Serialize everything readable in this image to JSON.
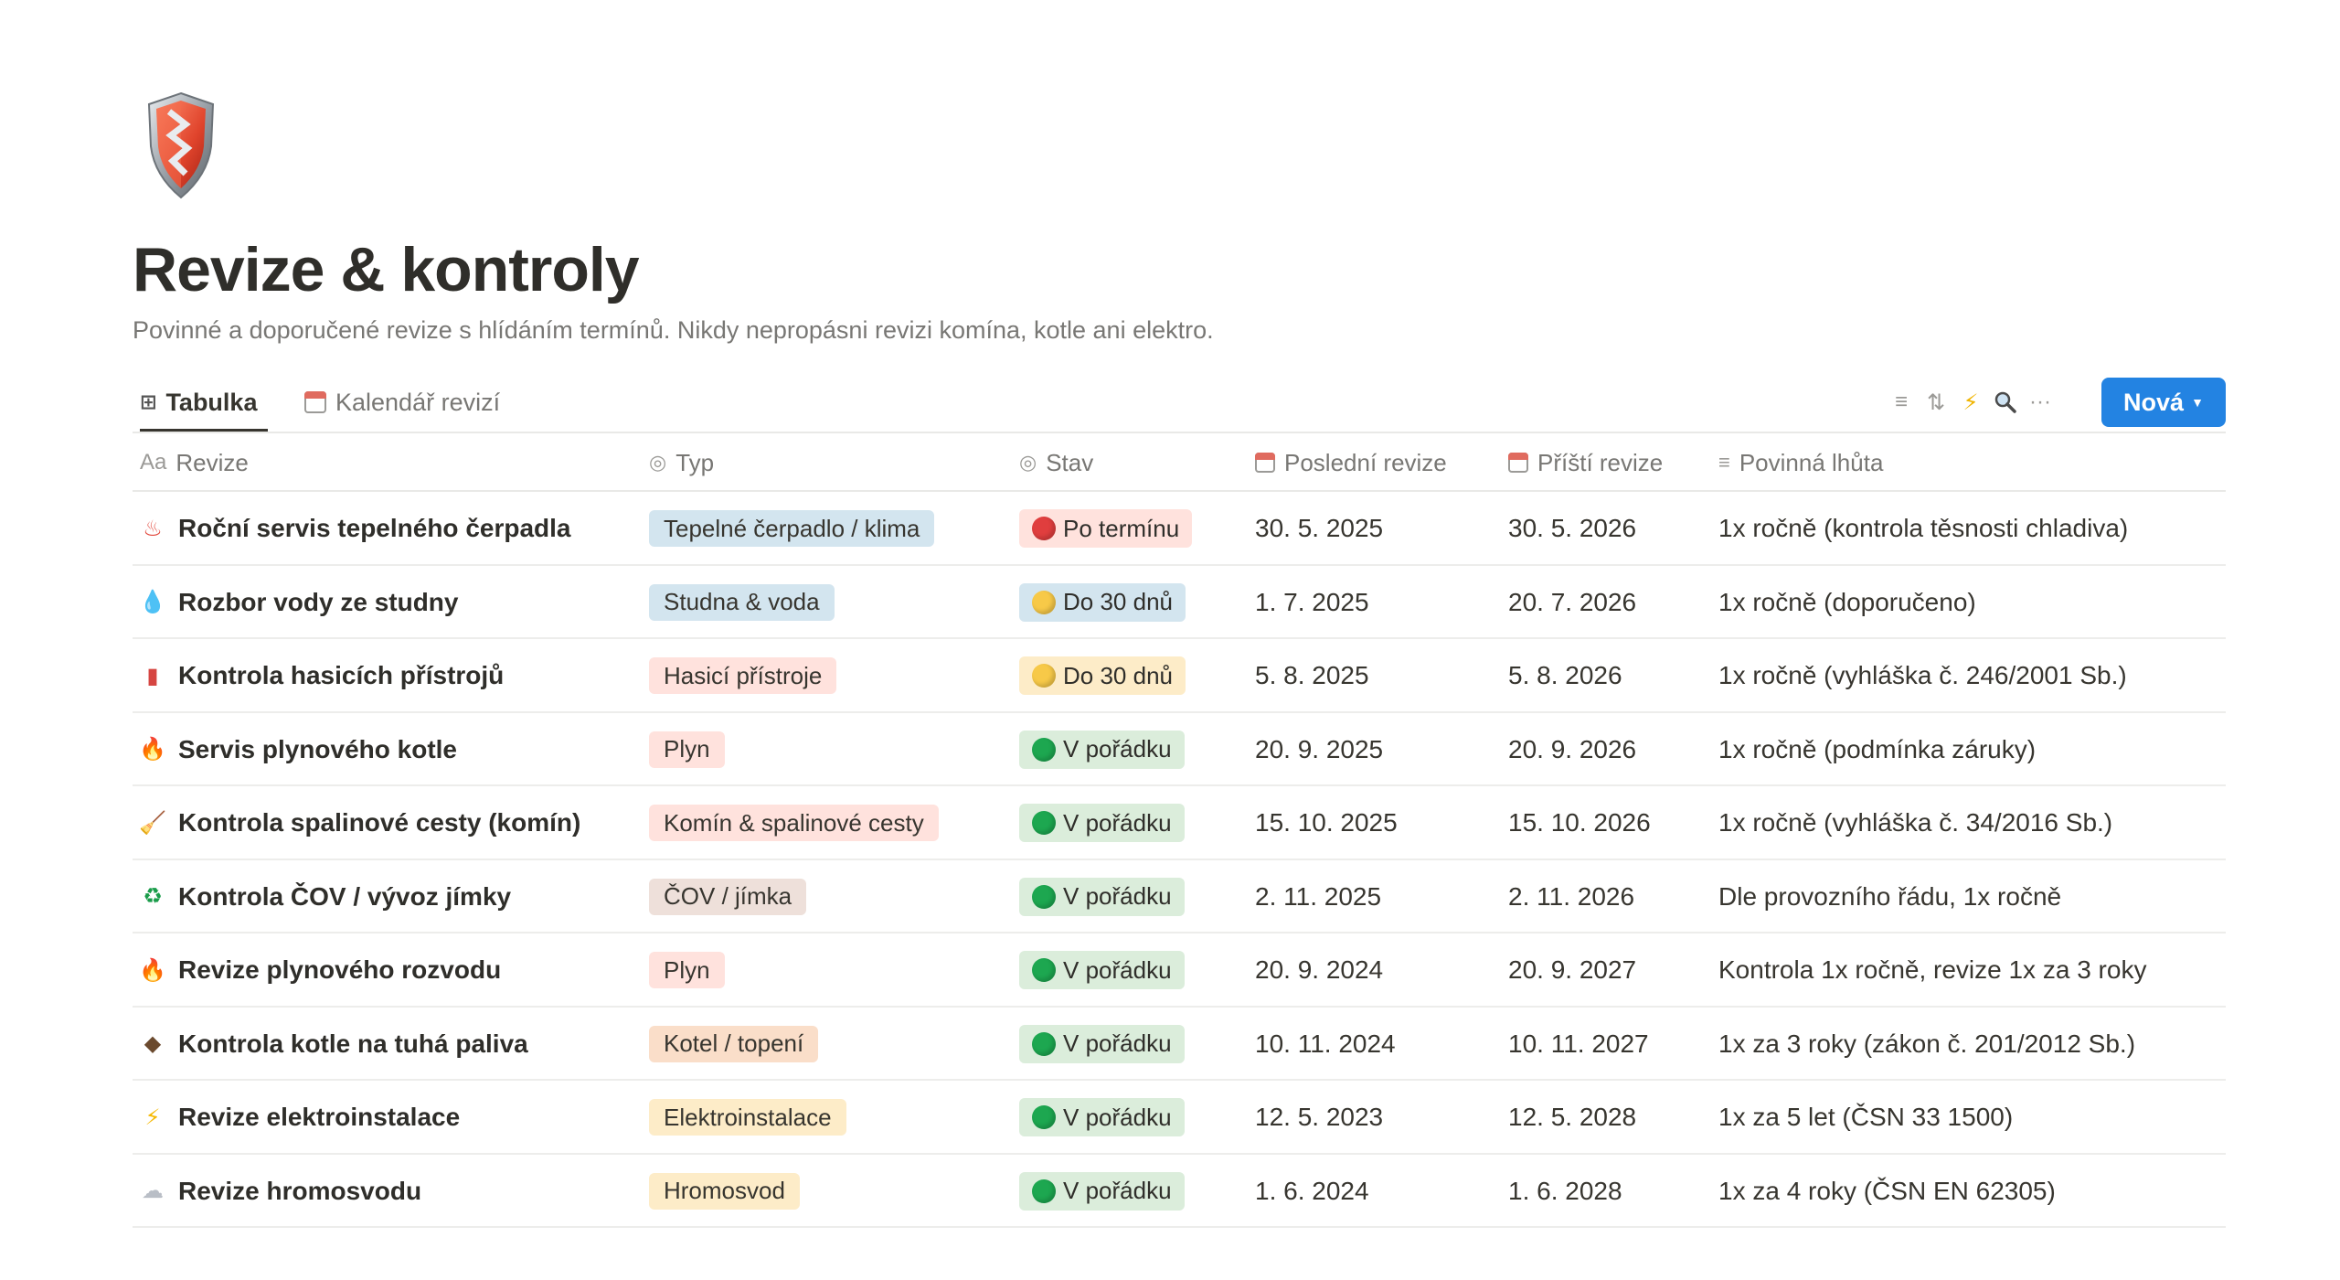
{
  "page": {
    "title": "Revize & kontroly",
    "subtitle": "Povinné a doporučené revize s hlídáním termínů. Nikdy nepropásni revizi komína, kotle ani elektro.",
    "icon": "shield-icon"
  },
  "tabs": [
    {
      "label": "Tabulka",
      "icon": "table-icon",
      "active": true
    },
    {
      "label": "Kalendář revizí",
      "icon": "calendar-icon",
      "active": false
    }
  ],
  "toolbar": {
    "new_label": "Nová",
    "icons": [
      "filter-icon",
      "sort-icon",
      "automation-icon",
      "search-icon",
      "more-icon"
    ]
  },
  "columns": {
    "revize": {
      "label": "Revize",
      "icon_text": "Aa"
    },
    "typ": {
      "label": "Typ"
    },
    "stav": {
      "label": "Stav"
    },
    "last": {
      "label": "Poslední revize"
    },
    "next": {
      "label": "Příští revize"
    },
    "lhuta": {
      "label": "Povinná lhůta"
    }
  },
  "colors": {
    "accent": "#2383e2",
    "status_red": "#e03e3e",
    "status_yellow": "#f7c948",
    "status_green": "#1da750"
  },
  "rows": [
    {
      "emoji": "♨",
      "emoji_name": "hot-springs-icon",
      "emoji_color": "#e2483d",
      "name": "Roční servis tepelného čerpadla",
      "typ": "Tepelné čerpadlo / klima",
      "typ_bg": "#d3e5ef",
      "stav": "Po termínu",
      "stav_bg": "#ffe2dd",
      "dot": "#e03e3e",
      "last": "30. 5. 2025",
      "next": "30. 5. 2026",
      "lhuta": "1x ročně (kontrola těsnosti chladiva)"
    },
    {
      "emoji": "💧",
      "emoji_name": "droplet-icon",
      "emoji_color": "#3d9be9",
      "name": "Rozbor vody ze studny",
      "typ": "Studna & voda",
      "typ_bg": "#d3e5ef",
      "stav": "Do 30 dnů",
      "stav_bg": "#d3e5ef",
      "dot": "#f7c948",
      "last": "1. 7. 2025",
      "next": "20. 7. 2026",
      "lhuta": "1x ročně (doporučeno)"
    },
    {
      "emoji": "▮",
      "emoji_name": "fire-extinguisher-icon",
      "emoji_color": "#d64541",
      "name": "Kontrola hasicích přístrojů",
      "typ": "Hasicí přístroje",
      "typ_bg": "#ffe2dd",
      "stav": "Do 30 dnů",
      "stav_bg": "#fdecc8",
      "dot": "#f7c948",
      "last": "5. 8. 2025",
      "next": "5. 8. 2026",
      "lhuta": "1x ročně (vyhláška č. 246/2001 Sb.)"
    },
    {
      "emoji": "🔥",
      "emoji_name": "fire-icon",
      "emoji_color": "#f06a1f",
      "name": "Servis plynového kotle",
      "typ": "Plyn",
      "typ_bg": "#ffe2dd",
      "stav": "V pořádku",
      "stav_bg": "#dbeddb",
      "dot": "#1da750",
      "last": "20. 9. 2025",
      "next": "20. 9. 2026",
      "lhuta": "1x ročně (podmínka záruky)"
    },
    {
      "emoji": "🧹",
      "emoji_name": "broom-icon",
      "emoji_color": "#b07a3c",
      "name": "Kontrola spalinové cesty (komín)",
      "typ": "Komín & spalinové cesty",
      "typ_bg": "#ffe2dd",
      "stav": "V pořádku",
      "stav_bg": "#dbeddb",
      "dot": "#1da750",
      "last": "15. 10. 2025",
      "next": "15. 10. 2026",
      "lhuta": "1x ročně (vyhláška č. 34/2016 Sb.)"
    },
    {
      "emoji": "♻",
      "emoji_name": "recycle-icon",
      "emoji_color": "#1a9c4a",
      "name": "Kontrola ČOV / vývoz jímky",
      "typ": "ČOV / jímka",
      "typ_bg": "#eee0da",
      "stav": "V pořádku",
      "stav_bg": "#dbeddb",
      "dot": "#1da750",
      "last": "2. 11. 2025",
      "next": "2. 11. 2026",
      "lhuta": "Dle provozního řádu, 1x ročně"
    },
    {
      "emoji": "🔥",
      "emoji_name": "fire-icon",
      "emoji_color": "#f06a1f",
      "name": "Revize plynového rozvodu",
      "typ": "Plyn",
      "typ_bg": "#ffe2dd",
      "stav": "V pořádku",
      "stav_bg": "#dbeddb",
      "dot": "#1da750",
      "last": "20. 9. 2024",
      "next": "20. 9. 2027",
      "lhuta": "Kontrola 1x ročně, revize 1x za 3 roky"
    },
    {
      "emoji": "◆",
      "emoji_name": "wood-icon",
      "emoji_color": "#6b4a2e",
      "name": "Kontrola kotle na tuhá paliva",
      "typ": "Kotel / topení",
      "typ_bg": "#fadec9",
      "stav": "V pořádku",
      "stav_bg": "#dbeddb",
      "dot": "#1da750",
      "last": "10. 11. 2024",
      "next": "10. 11. 2027",
      "lhuta": "1x za 3 roky (zákon č. 201/2012 Sb.)"
    },
    {
      "emoji": "⚡",
      "emoji_name": "lightning-icon",
      "emoji_color": "#f5b800",
      "name": "Revize elektroinstalace",
      "typ": "Elektroinstalace",
      "typ_bg": "#fdecc8",
      "stav": "V pořádku",
      "stav_bg": "#dbeddb",
      "dot": "#1da750",
      "last": "12. 5. 2023",
      "next": "12. 5. 2028",
      "lhuta": "1x za 5 let (ČSN 33 1500)"
    },
    {
      "emoji": "☁",
      "emoji_name": "cloud-lightning-icon",
      "emoji_color": "#b9bec6",
      "name": "Revize hromosvodu",
      "typ": "Hromosvod",
      "typ_bg": "#fdecc8",
      "stav": "V pořádku",
      "stav_bg": "#dbeddb",
      "dot": "#1da750",
      "last": "1. 6. 2024",
      "next": "1. 6. 2028",
      "lhuta": "1x za 4 roky (ČSN EN 62305)"
    }
  ]
}
